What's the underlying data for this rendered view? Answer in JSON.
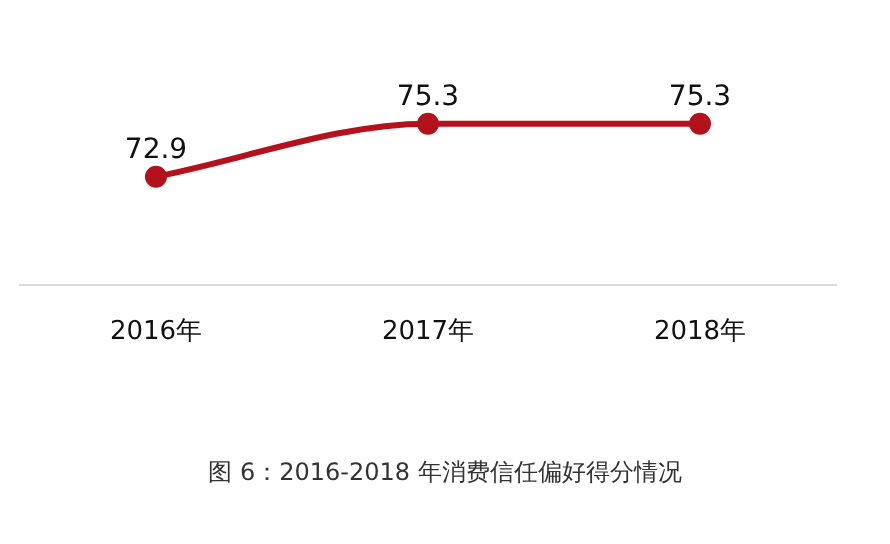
{
  "chart_data": {
    "type": "line",
    "categories": [
      "2016年",
      "2017年",
      "2018年"
    ],
    "series": [
      {
        "color": "#b3111c",
        "values": [
          72.9,
          75.3,
          75.3
        ]
      }
    ],
    "tick_labels": "x",
    "grid": false,
    "legend": false,
    "marker": "circle",
    "line_style": "solid",
    "data_labels": true,
    "annotations": [
      "图 6：2016-2018 年消费信任偏好得分情况"
    ]
  }
}
